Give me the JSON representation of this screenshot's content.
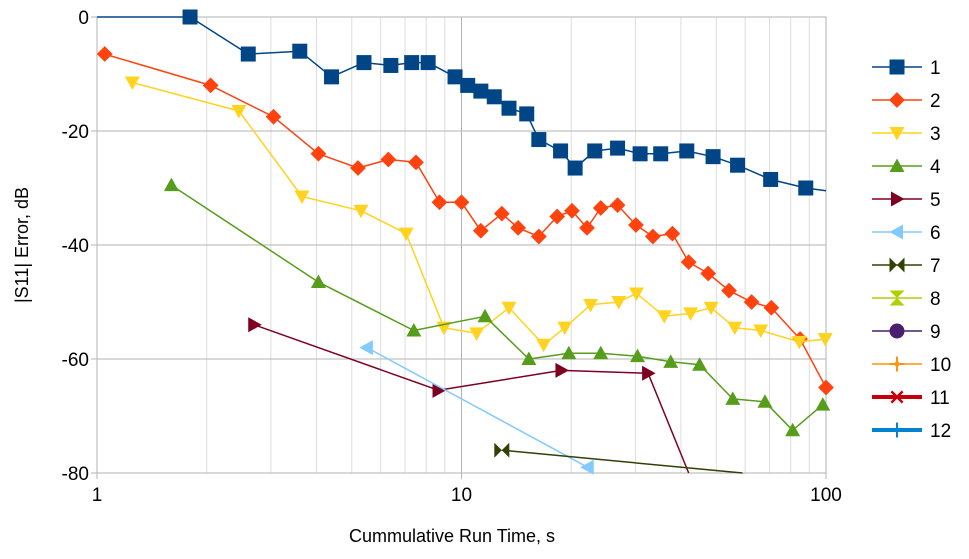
{
  "chart_data": {
    "type": "line",
    "title": "",
    "xlabel": "Cummulative Run Time, s",
    "ylabel": "|S11| Error, dB",
    "xscale": "log",
    "xlim": [
      1,
      100
    ],
    "ylim": [
      -80,
      0
    ],
    "xticks": [
      1,
      10,
      100
    ],
    "xtick_labels": [
      "1",
      "10",
      "100"
    ],
    "yticks": [
      0,
      -20,
      -40,
      -60,
      -80
    ],
    "ytick_labels": [
      "0",
      "-20",
      "-40",
      "-60",
      "-80"
    ],
    "grid": true,
    "legend_position": "right",
    "series": [
      {
        "name": "1",
        "color": "#004586",
        "marker": "square",
        "line_width": 1.5,
        "x": [
          1,
          1.8,
          2.6,
          3.6,
          4.4,
          5.4,
          6.4,
          7.3,
          8.1,
          9.6,
          10.4,
          11.3,
          12.3,
          13.5,
          15.1,
          16.3,
          18.7,
          20.5,
          23.2,
          26.8,
          30.9,
          35.2,
          41.5,
          49.0,
          57.2,
          70.5,
          88.0,
          100
        ],
        "y": [
          0,
          0,
          -6.5,
          -6,
          -10.5,
          -8,
          -8.5,
          -8,
          -8,
          -10.5,
          -12,
          -13,
          -14,
          -16,
          -17,
          -21.5,
          -23.5,
          -26.5,
          -23.5,
          -23,
          -24,
          -24,
          -23.5,
          -24.5,
          -26,
          -28.5,
          -30,
          -30.5
        ],
        "markers": [
          false,
          true,
          true,
          true,
          true,
          true,
          true,
          true,
          true,
          true,
          true,
          true,
          true,
          true,
          true,
          true,
          true,
          true,
          true,
          true,
          true,
          true,
          true,
          true,
          true,
          true,
          true,
          false
        ]
      },
      {
        "name": "2",
        "color": "#ff420e",
        "marker": "diamond",
        "line_width": 1.5,
        "x": [
          1.05,
          2.05,
          3.05,
          4.05,
          5.2,
          6.3,
          7.5,
          8.7,
          10.0,
          11.3,
          12.9,
          14.3,
          16.3,
          18.3,
          20.1,
          22.1,
          24.1,
          26.8,
          30.1,
          33.5,
          37.9,
          42.0,
          47.5,
          54.2,
          62.5,
          70.8,
          84.9,
          100
        ],
        "y": [
          -6.5,
          -12,
          -17.5,
          -24,
          -26.5,
          -25,
          -25.5,
          -32.5,
          -32.5,
          -37.5,
          -34.5,
          -37,
          -38.5,
          -35,
          -34,
          -37,
          -33.5,
          -33,
          -36.5,
          -38.5,
          -38,
          -43,
          -45,
          -48,
          -50,
          -51,
          -56.5,
          -65
        ]
      },
      {
        "name": "3",
        "color": "#ffd320",
        "marker": "triangle-down",
        "line_width": 1.5,
        "x": [
          1.25,
          2.45,
          3.65,
          5.3,
          7.05,
          8.95,
          11.0,
          13.5,
          16.8,
          19.2,
          22.6,
          27.0,
          30.2,
          36.0,
          42.5,
          48.4,
          56.2,
          66.2,
          84.5,
          99.5
        ],
        "y": [
          -11.5,
          -16.5,
          -31.5,
          -34,
          -38,
          -54.5,
          -55.5,
          -51,
          -57.5,
          -54.5,
          -50.5,
          -50,
          -48.5,
          -52.5,
          -52,
          -51,
          -54.5,
          -55,
          -57,
          -56.5
        ]
      },
      {
        "name": "4",
        "color": "#579d1c",
        "marker": "triangle-up",
        "line_width": 1.5,
        "x": [
          1.6,
          4.05,
          7.4,
          11.6,
          15.3,
          19.7,
          24.1,
          30.4,
          37.5,
          45.0,
          55.5,
          68.0,
          81.0,
          98.0
        ],
        "y": [
          -29.5,
          -46.5,
          -55,
          -52.5,
          -60,
          -59,
          -59,
          -59.5,
          -60.5,
          -61,
          -67,
          -67.5,
          -72.5,
          -68
        ]
      },
      {
        "name": "5",
        "color": "#7e0021",
        "marker": "triangle-right",
        "line_width": 1.5,
        "x": [
          2.7,
          8.65,
          18.8,
          32.5,
          42.0
        ],
        "y": [
          -54,
          -65.5,
          -62,
          -62.5,
          -80
        ],
        "markers": [
          true,
          true,
          true,
          true,
          false
        ]
      },
      {
        "name": "6",
        "color": "#83caff",
        "marker": "triangle-left",
        "line_width": 1.5,
        "x": [
          5.5,
          22.2
        ],
        "y": [
          -58,
          -79
        ]
      },
      {
        "name": "7",
        "color": "#314004",
        "marker": "bowtie",
        "line_width": 1.5,
        "x": [
          12.9,
          59.0
        ],
        "y": [
          -76,
          -80
        ],
        "markers": [
          true,
          false
        ]
      },
      {
        "name": "8",
        "color": "#aecf00",
        "marker": "hourglass",
        "line_width": 1.5,
        "x": [],
        "y": []
      },
      {
        "name": "9",
        "color": "#4b1f6f",
        "marker": "circle",
        "line_width": 1.5,
        "x": [],
        "y": []
      },
      {
        "name": "10",
        "color": "#ff950e",
        "marker": "plus-dot",
        "line_width": 1.5,
        "x": [],
        "y": []
      },
      {
        "name": "11",
        "color": "#c5000b",
        "marker": "x",
        "line_width": 4,
        "x": [],
        "y": []
      },
      {
        "name": "12",
        "color": "#0084d1",
        "marker": "plus",
        "line_width": 4,
        "x": [],
        "y": []
      }
    ]
  }
}
